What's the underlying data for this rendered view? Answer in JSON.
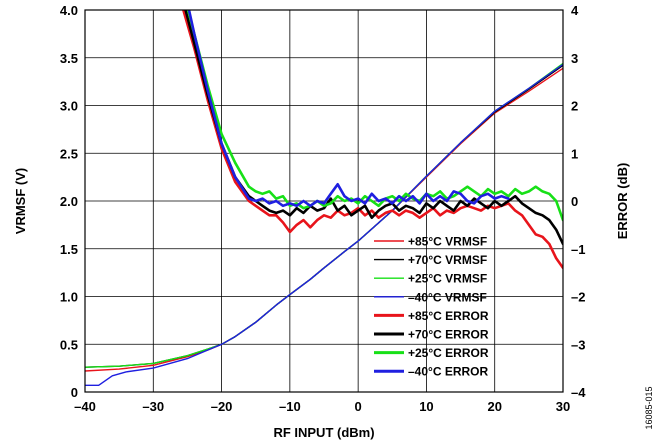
{
  "figure_id": "16085-015",
  "chart_data": {
    "type": "line",
    "xlabel": "RF INPUT (dBm)",
    "ylabel": "VRMSF (V)",
    "y2label": "ERROR (dB)",
    "xlim": [
      -40,
      30
    ],
    "ylim": [
      0,
      4.0
    ],
    "y2lim": [
      -4,
      4
    ],
    "grid": true,
    "legend_position": "bottom-right",
    "x_ticks": [
      "–40",
      "–30",
      "–20",
      "–10",
      "0",
      "10",
      "20",
      "30"
    ],
    "y_ticks": [
      "0",
      "0.5",
      "1.0",
      "1.5",
      "2.0",
      "2.5",
      "3.0",
      "3.5",
      "4.0"
    ],
    "y2_ticks": [
      "–4",
      "–3",
      "–2",
      "–1",
      "0",
      "1",
      "2",
      "3",
      "4"
    ],
    "series": [
      {
        "name": "+85°C VRMSF",
        "axis": "left",
        "color": "#e8141b",
        "width": "thin",
        "x": [
          -40,
          -35,
          -30,
          -25,
          -22,
          -20,
          -18,
          -15,
          -12,
          -10,
          -7,
          -5,
          -2,
          0,
          5,
          10,
          15,
          20,
          25,
          30
        ],
        "y": [
          0.22,
          0.24,
          0.28,
          0.37,
          0.44,
          0.5,
          0.58,
          0.73,
          0.91,
          1.02,
          1.18,
          1.3,
          1.47,
          1.58,
          1.9,
          2.25,
          2.6,
          2.92,
          3.15,
          3.39
        ]
      },
      {
        "name": "+70°C VRMSF",
        "axis": "left",
        "color": "#000000",
        "width": "thin",
        "x": [
          -40,
          -35,
          -30,
          -25,
          -22,
          -20,
          -18,
          -15,
          -12,
          -10,
          -7,
          -5,
          -2,
          0,
          5,
          10,
          15,
          20,
          25,
          30
        ],
        "y": [
          0.26,
          0.27,
          0.3,
          0.38,
          0.45,
          0.5,
          0.58,
          0.73,
          0.91,
          1.02,
          1.18,
          1.3,
          1.47,
          1.58,
          1.9,
          2.26,
          2.61,
          2.93,
          3.17,
          3.42
        ]
      },
      {
        "name": "+25°C VRMSF",
        "axis": "left",
        "color": "#17e017",
        "width": "thin",
        "x": [
          -40,
          -35,
          -30,
          -25,
          -22,
          -20,
          -18,
          -15,
          -12,
          -10,
          -7,
          -5,
          -2,
          0,
          5,
          10,
          15,
          20,
          25,
          30
        ],
        "y": [
          0.26,
          0.27,
          0.3,
          0.38,
          0.45,
          0.5,
          0.58,
          0.73,
          0.91,
          1.02,
          1.18,
          1.3,
          1.47,
          1.58,
          1.9,
          2.26,
          2.61,
          2.94,
          3.18,
          3.44
        ]
      },
      {
        "name": "–40°C VRMSF",
        "axis": "left",
        "color": "#1f1fe0",
        "width": "thin",
        "x": [
          -40,
          -38,
          -36,
          -34,
          -30,
          -25,
          -22,
          -20,
          -18,
          -15,
          -12,
          -10,
          -7,
          -5,
          -2,
          0,
          5,
          10,
          15,
          20,
          25,
          30
        ],
        "y": [
          0.07,
          0.07,
          0.17,
          0.21,
          0.25,
          0.35,
          0.44,
          0.5,
          0.58,
          0.73,
          0.91,
          1.02,
          1.18,
          1.3,
          1.47,
          1.58,
          1.9,
          2.26,
          2.61,
          2.94,
          3.18,
          3.43
        ]
      },
      {
        "name": "+85°C ERROR",
        "axis": "right",
        "color": "#e8141b",
        "width": "thick",
        "x": [
          -26,
          -24,
          -22,
          -20,
          -18,
          -16,
          -15,
          -14,
          -13,
          -12,
          -11,
          -10,
          -9,
          -8,
          -7,
          -6,
          -5,
          -4,
          -3,
          -2,
          -1,
          0,
          1,
          2,
          3,
          4,
          5,
          6,
          7,
          8,
          9,
          10,
          11,
          12,
          13,
          14,
          15,
          16,
          17,
          18,
          19,
          20,
          21,
          22,
          23,
          24,
          25,
          26,
          27,
          28,
          29,
          30
        ],
        "y": [
          4.2,
          3.2,
          2.1,
          1.1,
          0.4,
          0.0,
          -0.1,
          -0.2,
          -0.3,
          -0.3,
          -0.45,
          -0.65,
          -0.5,
          -0.4,
          -0.55,
          -0.4,
          -0.3,
          -0.35,
          -0.2,
          -0.3,
          -0.25,
          -0.15,
          -0.3,
          -0.2,
          -0.35,
          -0.25,
          -0.2,
          -0.3,
          -0.2,
          -0.25,
          -0.35,
          -0.25,
          -0.15,
          -0.3,
          -0.2,
          -0.25,
          -0.15,
          -0.1,
          -0.15,
          -0.2,
          -0.1,
          -0.15,
          -0.1,
          -0.05,
          -0.2,
          -0.3,
          -0.5,
          -0.7,
          -0.75,
          -0.9,
          -1.2,
          -1.4
        ]
      },
      {
        "name": "+70°C ERROR",
        "axis": "right",
        "color": "#000000",
        "width": "thick",
        "x": [
          -26,
          -24,
          -22,
          -20,
          -18,
          -16,
          -15,
          -14,
          -13,
          -12,
          -11,
          -10,
          -9,
          -8,
          -7,
          -6,
          -5,
          -4,
          -3,
          -2,
          -1,
          0,
          1,
          2,
          3,
          4,
          5,
          6,
          7,
          8,
          9,
          10,
          11,
          12,
          13,
          14,
          15,
          16,
          17,
          18,
          19,
          20,
          21,
          22,
          23,
          24,
          25,
          26,
          27,
          28,
          29,
          30
        ],
        "y": [
          4.4,
          3.3,
          2.2,
          1.2,
          0.5,
          0.1,
          0.0,
          -0.1,
          -0.2,
          -0.25,
          -0.2,
          -0.3,
          -0.15,
          -0.25,
          -0.1,
          -0.2,
          -0.15,
          0.05,
          -0.2,
          -0.1,
          -0.3,
          -0.2,
          -0.1,
          -0.35,
          -0.2,
          -0.1,
          -0.05,
          -0.2,
          -0.1,
          -0.15,
          -0.25,
          -0.05,
          -0.15,
          0.0,
          -0.1,
          -0.2,
          0.0,
          -0.1,
          0.05,
          -0.05,
          -0.15,
          0.0,
          -0.1,
          0.0,
          0.1,
          -0.05,
          -0.15,
          -0.25,
          -0.3,
          -0.4,
          -0.6,
          -0.9
        ]
      },
      {
        "name": "+25°C ERROR",
        "axis": "right",
        "color": "#17e017",
        "width": "thick",
        "x": [
          -26,
          -24,
          -22,
          -20,
          -18,
          -16,
          -15,
          -14,
          -13,
          -12,
          -11,
          -10,
          -9,
          -8,
          -7,
          -6,
          -5,
          -4,
          -3,
          -2,
          -1,
          0,
          1,
          2,
          3,
          4,
          5,
          6,
          7,
          8,
          9,
          10,
          11,
          12,
          13,
          14,
          15,
          16,
          17,
          18,
          19,
          20,
          21,
          22,
          23,
          24,
          25,
          26,
          27,
          28,
          29,
          30
        ],
        "y": [
          4.6,
          3.5,
          2.4,
          1.4,
          0.8,
          0.3,
          0.2,
          0.15,
          0.2,
          0.05,
          0.1,
          -0.1,
          -0.05,
          -0.15,
          -0.1,
          0.0,
          -0.1,
          -0.05,
          0.1,
          0.0,
          0.05,
          -0.05,
          0.1,
          0.0,
          -0.1,
          0.05,
          0.1,
          0.0,
          0.15,
          0.05,
          0.0,
          0.15,
          0.1,
          0.2,
          0.05,
          0.1,
          0.2,
          0.3,
          0.2,
          0.1,
          0.25,
          0.15,
          0.2,
          0.1,
          0.25,
          0.15,
          0.2,
          0.3,
          0.2,
          0.15,
          0.0,
          -0.4
        ]
      },
      {
        "name": "–40°C ERROR",
        "axis": "right",
        "color": "#1f1fe0",
        "width": "thick",
        "x": [
          -26,
          -24,
          -22,
          -20,
          -18,
          -16,
          -15,
          -14,
          -13,
          -12,
          -11,
          -10,
          -9,
          -8,
          -7,
          -6,
          -5,
          -4,
          -3,
          -2,
          -1,
          0,
          1,
          2,
          3,
          4,
          5,
          6,
          7,
          8,
          9,
          10,
          11,
          12,
          13,
          14,
          15,
          16,
          17,
          18,
          19,
          20,
          21,
          22
        ],
        "y": [
          4.8,
          3.5,
          2.3,
          1.2,
          0.5,
          0.05,
          0.0,
          0.05,
          -0.05,
          0.0,
          -0.1,
          -0.05,
          -0.1,
          0.0,
          -0.1,
          0.0,
          -0.05,
          0.15,
          0.35,
          0.1,
          0.0,
          0.05,
          -0.05,
          0.15,
          0.0,
          0.05,
          -0.05,
          0.1,
          0.0,
          0.1,
          -0.05,
          0.15,
          0.0,
          0.1,
          0.0,
          0.2,
          0.15,
          0.0,
          -0.05,
          0.1,
          0.15,
          0.05,
          0.1,
          0.05
        ]
      }
    ]
  }
}
